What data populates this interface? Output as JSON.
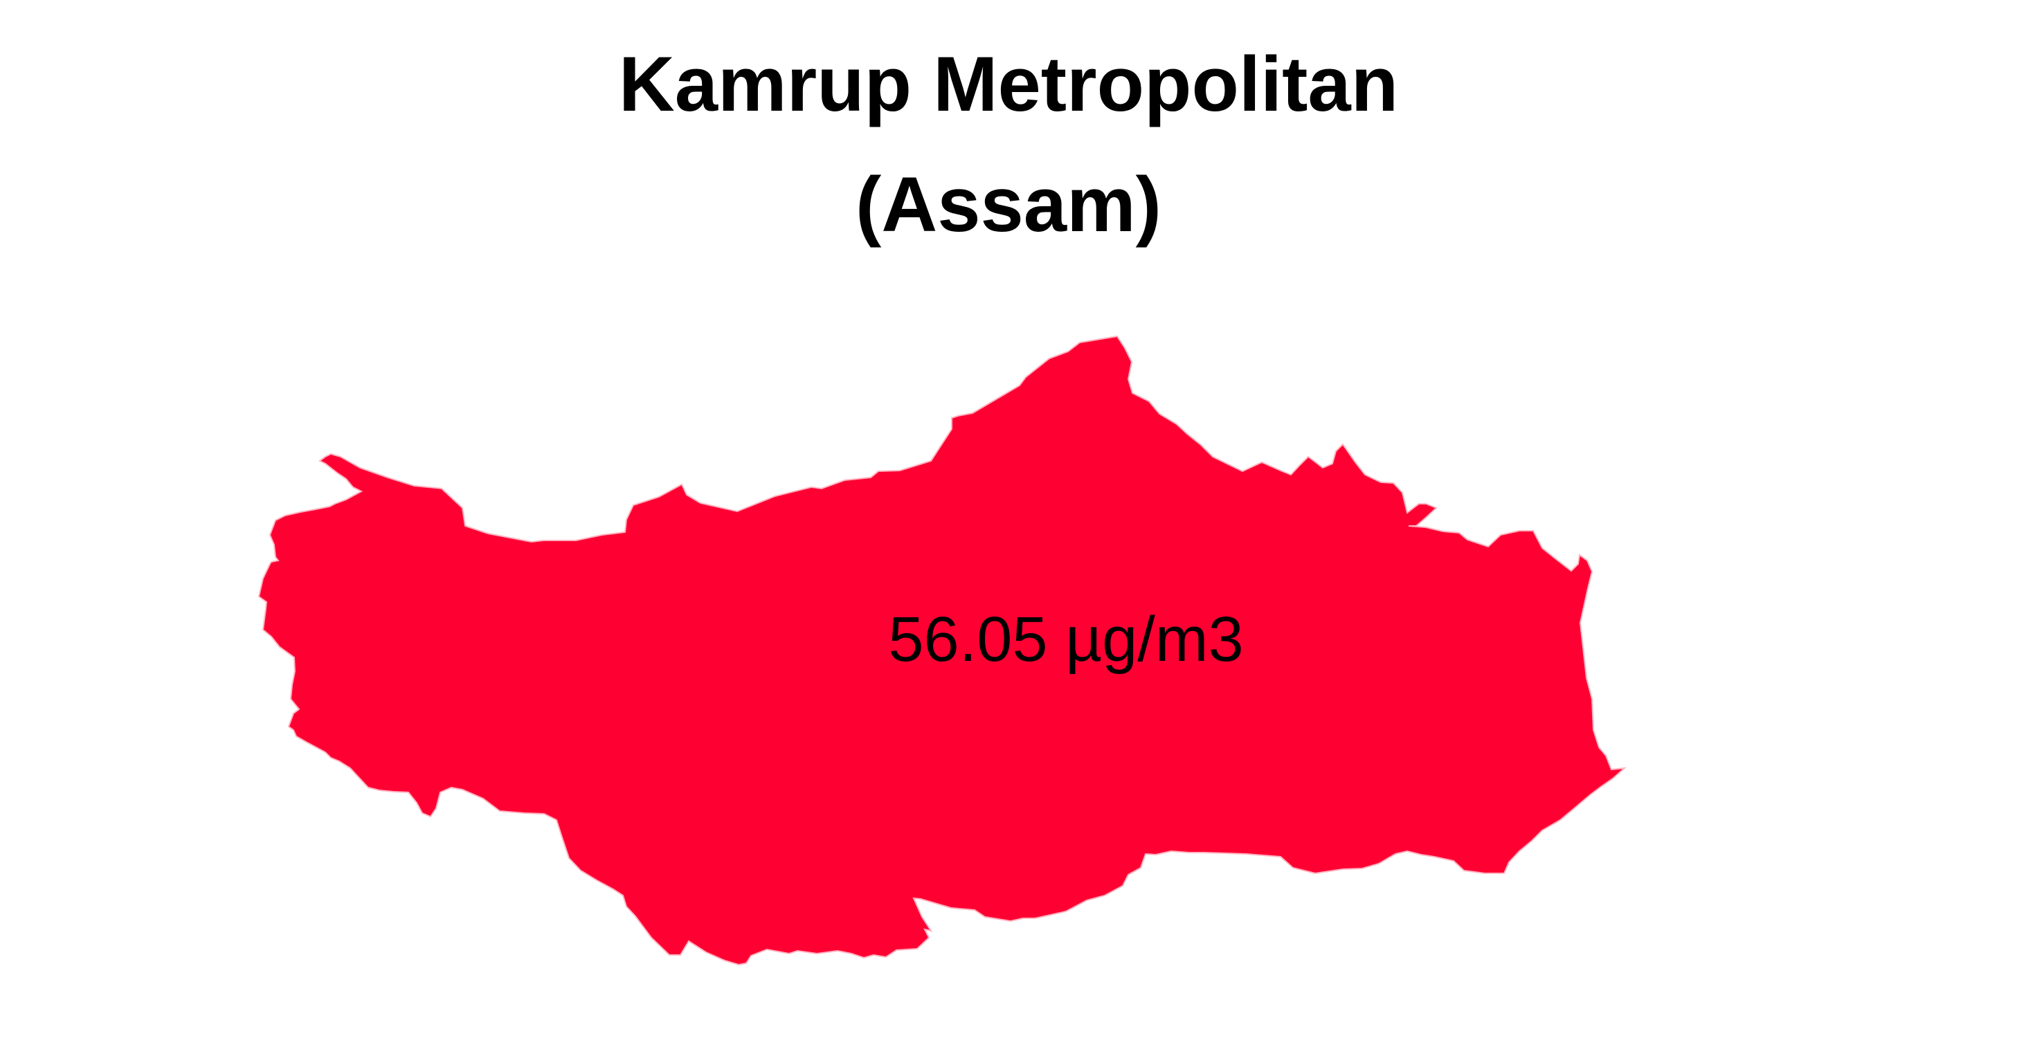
{
  "title": {
    "line1": "Kamrup Metropolitan",
    "line2": "(Assam)"
  },
  "region": {
    "name": "Kamrup Metropolitan",
    "fill_color": "#FF0033",
    "value_label": "56.05 µg/m3"
  }
}
